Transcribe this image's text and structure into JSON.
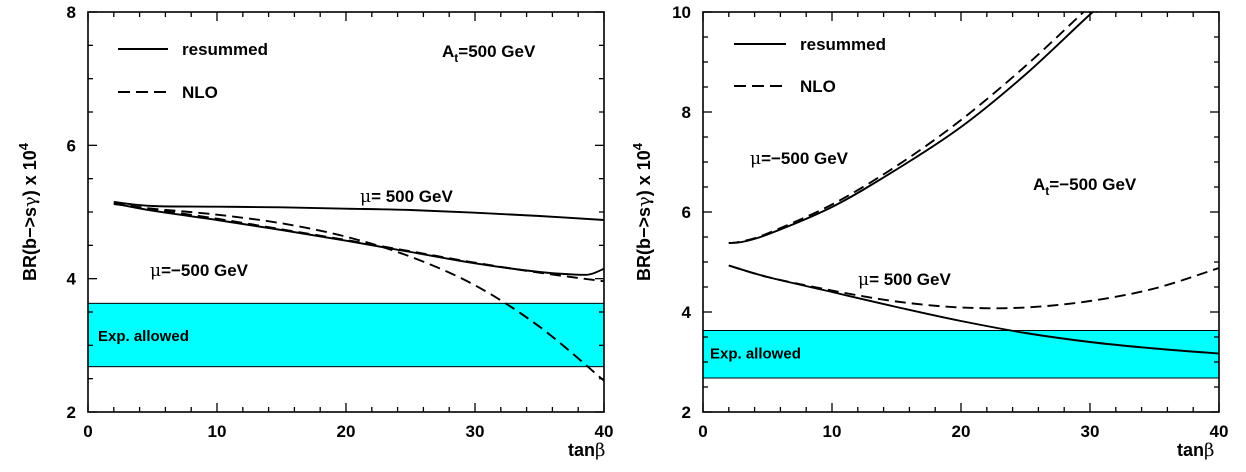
{
  "chart_data": [
    {
      "type": "line",
      "xlabel": "tanβ",
      "ylabel": "BR(b−>sγ) x 10^4",
      "xlim": [
        0,
        40
      ],
      "ylim": [
        2,
        8
      ],
      "xticks": [
        0,
        10,
        20,
        30,
        40
      ],
      "yticks": [
        2,
        4,
        6,
        8
      ],
      "legend": {
        "placement": "top-left",
        "entries": [
          {
            "label": "resummed",
            "style": "solid"
          },
          {
            "label": "NLO",
            "style": "dashed"
          }
        ]
      },
      "annotations": {
        "param": {
          "text": "A",
          "sub": "t",
          "rest": "=500 GeV"
        },
        "mu_plus": {
          "sym": "μ",
          "rest": "= 500 GeV"
        },
        "mu_minus": {
          "sym": "μ",
          "rest": "=−500 GeV"
        }
      },
      "band": {
        "label": "Exp. allowed",
        "range": [
          2.68,
          3.63
        ],
        "color": "#00ffff"
      },
      "series": [
        {
          "style": "solid",
          "x": [
            2,
            5,
            10,
            15,
            20,
            25,
            30,
            35,
            40
          ],
          "y": [
            5.15,
            5.09,
            5.08,
            5.07,
            5.05,
            5.03,
            4.99,
            4.94,
            4.88
          ]
        },
        {
          "style": "dashed",
          "x": [
            2,
            5,
            10,
            15,
            20,
            25,
            30,
            35,
            40
          ],
          "y": [
            5.12,
            5.05,
            4.96,
            4.83,
            4.63,
            4.33,
            3.9,
            3.28,
            2.47
          ]
        },
        {
          "style": "solid",
          "x": [
            2,
            5,
            10,
            15,
            20,
            25,
            30,
            35,
            38,
            39,
            40
          ],
          "y": [
            5.13,
            5.02,
            4.88,
            4.73,
            4.57,
            4.4,
            4.23,
            4.1,
            4.06,
            4.07,
            4.15
          ]
        },
        {
          "style": "dashed",
          "x": [
            2,
            5,
            10,
            15,
            20,
            25,
            30,
            35,
            40
          ],
          "y": [
            5.14,
            5.04,
            4.9,
            4.74,
            4.58,
            4.41,
            4.24,
            4.09,
            3.96
          ]
        }
      ]
    },
    {
      "type": "line",
      "xlabel": "tanβ",
      "ylabel": "BR(b−>sγ) x 10^4",
      "xlim": [
        0,
        40
      ],
      "ylim": [
        2,
        10
      ],
      "xticks": [
        0,
        10,
        20,
        30,
        40
      ],
      "yticks": [
        2,
        4,
        6,
        8,
        10
      ],
      "legend": {
        "placement": "top-left",
        "entries": [
          {
            "label": "resummed",
            "style": "solid"
          },
          {
            "label": "NLO",
            "style": "dashed"
          }
        ]
      },
      "annotations": {
        "param": {
          "text": "A",
          "sub": "t",
          "rest": "=−500 GeV"
        },
        "mu_plus": {
          "sym": "μ",
          "rest": "= 500 GeV"
        },
        "mu_minus": {
          "sym": "μ",
          "rest": "=−500 GeV"
        }
      },
      "band": {
        "label": "Exp. allowed",
        "range": [
          2.68,
          3.63
        ],
        "color": "#00ffff"
      },
      "series": [
        {
          "style": "solid",
          "x": [
            2,
            3,
            5,
            10,
            15,
            20,
            25,
            30,
            30.5
          ],
          "y": [
            5.38,
            5.4,
            5.55,
            6.1,
            6.85,
            7.7,
            8.75,
            9.95,
            10.0
          ]
        },
        {
          "style": "dashed",
          "x": [
            2,
            3,
            5,
            10,
            15,
            20,
            25,
            29.5
          ],
          "y": [
            5.38,
            5.41,
            5.57,
            6.15,
            6.92,
            7.84,
            8.92,
            10.0
          ]
        },
        {
          "style": "solid",
          "x": [
            2,
            5,
            10,
            15,
            20,
            25,
            30,
            35,
            40
          ],
          "y": [
            4.93,
            4.7,
            4.4,
            4.1,
            3.82,
            3.58,
            3.4,
            3.27,
            3.17
          ]
        },
        {
          "style": "dashed",
          "x": [
            2,
            5,
            10,
            15,
            20,
            25,
            30,
            35,
            40
          ],
          "y": [
            4.93,
            4.7,
            4.43,
            4.21,
            4.09,
            4.09,
            4.22,
            4.47,
            4.88
          ]
        }
      ]
    }
  ]
}
